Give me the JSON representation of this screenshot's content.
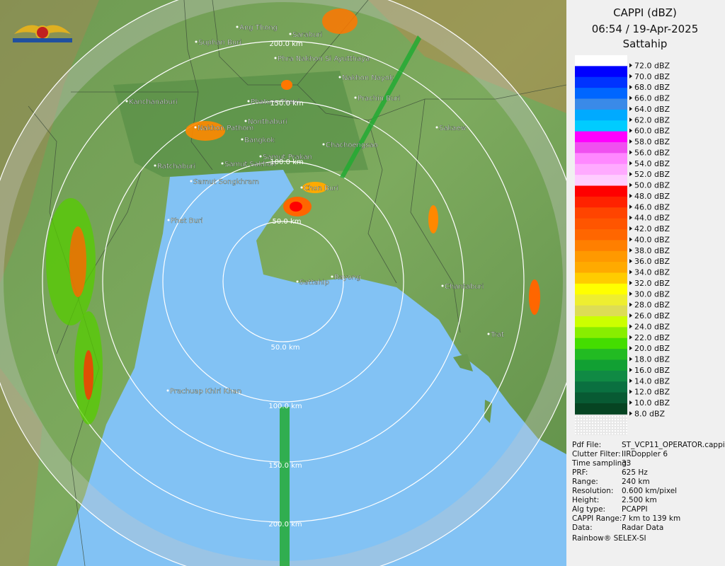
{
  "header": {
    "title": "CAPPI (dBZ)",
    "time": "06:54 / 19-Apr-2025",
    "site": "Sattahip"
  },
  "legend": [
    {
      "label": "72.0 dBZ",
      "color": "#ffffff"
    },
    {
      "label": "70.0 dBZ",
      "color": "#0000ff"
    },
    {
      "label": "68.0 dBZ",
      "color": "#0033ff"
    },
    {
      "label": "66.0 dBZ",
      "color": "#0066ff"
    },
    {
      "label": "64.0 dBZ",
      "color": "#3a8ae8"
    },
    {
      "label": "62.0 dBZ",
      "color": "#00aaff"
    },
    {
      "label": "60.0 dBZ",
      "color": "#00ccff"
    },
    {
      "label": "58.0 dBZ",
      "color": "#ff00ff"
    },
    {
      "label": "56.0 dBZ",
      "color": "#f050f0"
    },
    {
      "label": "54.0 dBZ",
      "color": "#ff88ff"
    },
    {
      "label": "52.0 dBZ",
      "color": "#ffaaff"
    },
    {
      "label": "50.0 dBZ",
      "color": "#ffccff"
    },
    {
      "label": "48.0 dBZ",
      "color": "#ff0000"
    },
    {
      "label": "46.0 dBZ",
      "color": "#ff2200"
    },
    {
      "label": "44.0 dBZ",
      "color": "#ff4400"
    },
    {
      "label": "42.0 dBZ",
      "color": "#ff5500"
    },
    {
      "label": "40.0 dBZ",
      "color": "#ff6600"
    },
    {
      "label": "38.0 dBZ",
      "color": "#ff7f00"
    },
    {
      "label": "36.0 dBZ",
      "color": "#ff9900"
    },
    {
      "label": "34.0 dBZ",
      "color": "#ffaa00"
    },
    {
      "label": "32.0 dBZ",
      "color": "#ffcc00"
    },
    {
      "label": "30.0 dBZ",
      "color": "#ffff00"
    },
    {
      "label": "28.0 dBZ",
      "color": "#eeee30"
    },
    {
      "label": "26.0 dBZ",
      "color": "#dddd55"
    },
    {
      "label": "24.0 dBZ",
      "color": "#ccff00"
    },
    {
      "label": "22.0 dBZ",
      "color": "#88ee00"
    },
    {
      "label": "20.0 dBZ",
      "color": "#44dd00"
    },
    {
      "label": "18.0 dBZ",
      "color": "#22bb22"
    },
    {
      "label": "16.0 dBZ",
      "color": "#11a033"
    },
    {
      "label": "14.0 dBZ",
      "color": "#108a44"
    },
    {
      "label": "12.0 dBZ",
      "color": "#0a7040"
    },
    {
      "label": "10.0 dBZ",
      "color": "#085a33"
    },
    {
      "label": "8.0 dBZ",
      "color": "#064422"
    }
  ],
  "info": [
    {
      "key": "Pdf File:",
      "value": "ST_VCP11_OPERATOR.cappi"
    },
    {
      "key": "Clutter Filter:",
      "value": "IIRDoppler 6"
    },
    {
      "key": "Time sampling:",
      "value": "33"
    },
    {
      "key": "PRF:",
      "value": "625 Hz"
    },
    {
      "key": "Range:",
      "value": "240 km"
    },
    {
      "key": "Resolution:",
      "value": "0.600 km/pixel"
    },
    {
      "key": "Height:",
      "value": "2.500 km"
    },
    {
      "key": "Alg type:",
      "value": "PCAPPI"
    },
    {
      "key": "CAPPI Range:",
      "value": "7 km to 139 km"
    },
    {
      "key": "Data:",
      "value": "Radar Data"
    }
  ],
  "footer": "Rainbow® SELEX-SI",
  "places": [
    "Ang Thong",
    "Saraburi",
    "Suphan Buri",
    "Phra Nakhon Si Ayutthaya",
    "Nakhon Nayok",
    "Prachin Buri",
    "Kanchanaburi",
    "Phatum Thani",
    "Nonthaburi",
    "Sakaew",
    "Nakhon Pathom",
    "Bangkok",
    "Chachoengsao",
    "Samut Prakan",
    "Ratchaburi",
    "Samut Sakhon",
    "Samut Songkhram",
    "Chon Buri",
    "Phet Buri",
    "Sattahip",
    "Rayong",
    "Chantaburi",
    "Trat",
    "Prachuap Khiri Khan"
  ],
  "range_labels": [
    "200.0 km",
    "150.0 km",
    "100.0 km",
    "50.0 km",
    "50.0 km",
    "100.0 km",
    "150.0 km",
    "200.0 km"
  ]
}
